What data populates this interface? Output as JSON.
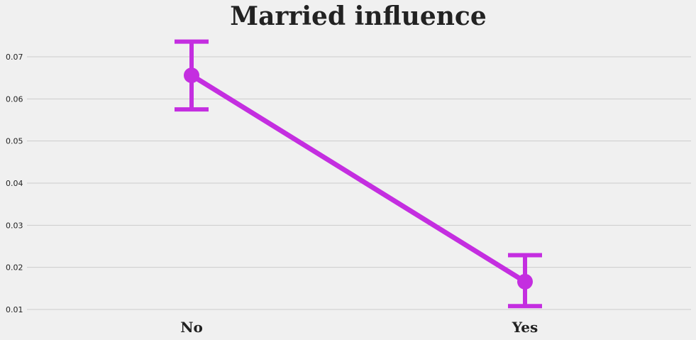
{
  "chart_data": {
    "type": "line",
    "title": "Married influence",
    "xlabel": "",
    "ylabel": "",
    "categories": [
      "No",
      "Yes"
    ],
    "series": [
      {
        "values": [
          0.0656,
          0.0166
        ],
        "error_low": [
          0.0575,
          0.0108
        ],
        "error_high": [
          0.0736,
          0.0229
        ],
        "color": "#c42ee0"
      }
    ],
    "yticks": [
      "0.01",
      "0.02",
      "0.03",
      "0.04",
      "0.05",
      "0.06",
      "0.07"
    ],
    "ylim": [
      0.01,
      0.07
    ],
    "grid": true
  },
  "colors": {
    "background": "#f0f0f0",
    "grid": "#cbcbcb",
    "text": "#222222",
    "series": "#c42ee0"
  }
}
